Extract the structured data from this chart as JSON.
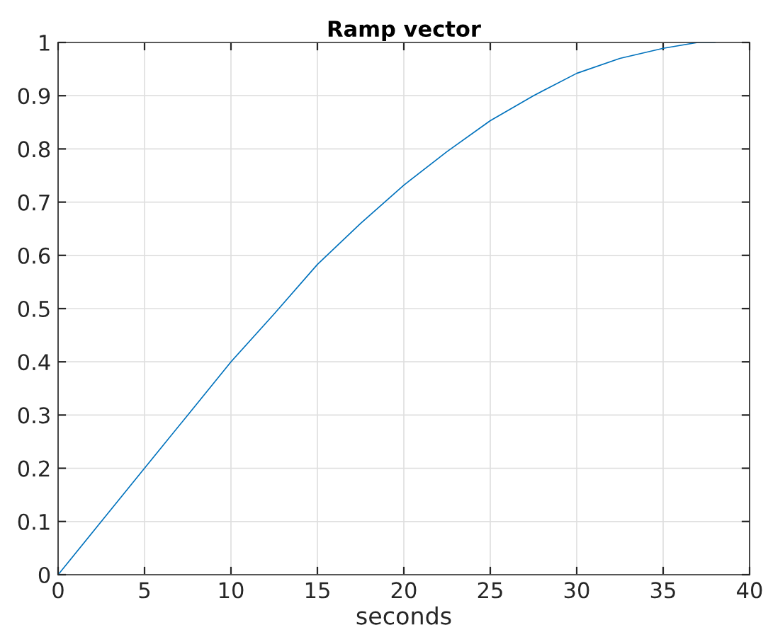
{
  "chart_data": {
    "type": "line",
    "title": "Ramp vector",
    "xlabel": "seconds",
    "x": [
      0,
      2.5,
      5,
      7.5,
      10,
      12.5,
      15,
      17.5,
      20,
      22.5,
      25,
      27.5,
      30,
      32.5,
      35,
      37,
      38
    ],
    "series": [
      {
        "color": "#0072bd",
        "values": [
          0,
          0.1,
          0.2,
          0.3,
          0.4,
          0.49,
          0.583,
          0.66,
          0.732,
          0.795,
          0.853,
          0.9,
          0.942,
          0.97,
          0.989,
          1,
          1
        ]
      }
    ],
    "xlim": [
      0,
      40
    ],
    "xticks": [
      0,
      5,
      10,
      15,
      20,
      25,
      30,
      35,
      40
    ],
    "ylim": [
      0,
      1
    ],
    "yticks": [
      0,
      0.1,
      0.2,
      0.3,
      0.4,
      0.5,
      0.6,
      0.7,
      0.8,
      0.9,
      1
    ],
    "grid": true,
    "marker": "none",
    "line_style": "solid"
  }
}
